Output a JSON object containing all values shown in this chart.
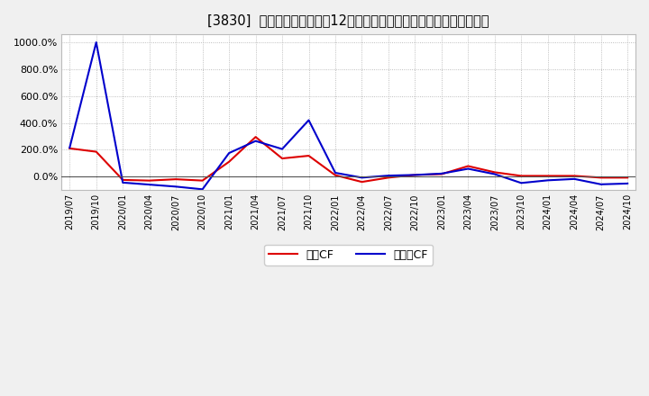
{
  "title": "[3830]  キャッシュフローの12か月移動合計の対前年同期増減率の推移",
  "background_color": "#f0f0f0",
  "plot_bg_color": "#ffffff",
  "grid_color": "#aaaaaa",
  "x_labels": [
    "2019/07",
    "2019/10",
    "2020/01",
    "2020/04",
    "2020/07",
    "2020/10",
    "2021/01",
    "2021/04",
    "2021/07",
    "2021/10",
    "2022/01",
    "2022/04",
    "2022/07",
    "2022/10",
    "2023/01",
    "2023/04",
    "2023/07",
    "2023/10",
    "2024/01",
    "2024/04",
    "2024/07",
    "2024/10"
  ],
  "operating_cf": [
    210,
    185,
    -25,
    -30,
    -20,
    -30,
    110,
    295,
    135,
    155,
    10,
    -40,
    -8,
    12,
    18,
    78,
    32,
    5,
    5,
    5,
    -8,
    -8
  ],
  "free_cf": [
    215,
    1000,
    -45,
    -60,
    -75,
    -95,
    175,
    265,
    205,
    420,
    28,
    -8,
    7,
    12,
    22,
    58,
    18,
    -48,
    -28,
    -18,
    -58,
    -52
  ],
  "operating_color": "#dd0000",
  "free_color": "#0000cc",
  "ylim_min": -100,
  "ylim_max": 1060,
  "yticks": [
    0,
    200,
    400,
    600,
    800,
    1000
  ],
  "ytick_labels": [
    "0.0%",
    "200.0%",
    "400.0%",
    "600.0%",
    "800.0%",
    "1000.0%"
  ],
  "legend_operating": "営業CF",
  "legend_free": "フリーCF"
}
